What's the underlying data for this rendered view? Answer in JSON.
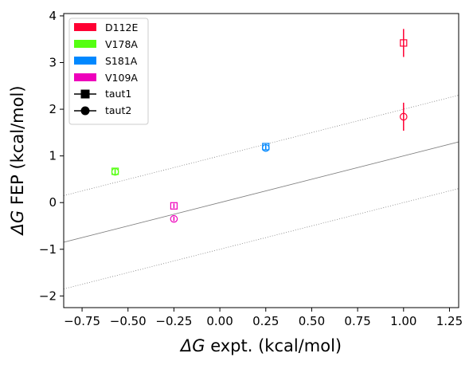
{
  "chart_data": {
    "type": "scatter",
    "xlabel_symbol": "ΔG",
    "xlabel_rest": " expt. (kcal/mol)",
    "ylabel_symbol": "ΔG",
    "ylabel_rest": " FEP (kcal/mol)",
    "xlim": [
      -0.85,
      1.3
    ],
    "ylim": [
      -2.25,
      4.05
    ],
    "xticks": [
      -0.75,
      -0.5,
      -0.25,
      0.0,
      0.25,
      0.5,
      0.75,
      1.0,
      1.25
    ],
    "xtick_labels": [
      "−0.75",
      "−0.50",
      "−0.25",
      "0.00",
      "0.25",
      "0.50",
      "0.75",
      "1.00",
      "1.25"
    ],
    "yticks": [
      -2,
      -1,
      0,
      1,
      2,
      3,
      4
    ],
    "ytick_labels": [
      "−2",
      "−1",
      "0",
      "1",
      "2",
      "3",
      "4"
    ],
    "grid": false,
    "legend_position": "top-left",
    "reference_lines": [
      {
        "offset": 0,
        "style": "solid",
        "color": "#808080"
      },
      {
        "offset": 1,
        "style": "dotted",
        "color": "#808080"
      },
      {
        "offset": -1,
        "style": "dotted",
        "color": "#808080"
      }
    ],
    "series": [
      {
        "name": "D112E",
        "color": "#ff0033",
        "points": [
          {
            "marker": "square",
            "x": 1.0,
            "y": 3.42,
            "yerr": 0.3
          },
          {
            "marker": "circle",
            "x": 1.0,
            "y": 1.84,
            "yerr": 0.3
          }
        ]
      },
      {
        "name": "V178A",
        "color": "#55ff11",
        "points": [
          {
            "marker": "square",
            "x": -0.57,
            "y": 0.67,
            "yerr": 0.05
          },
          {
            "marker": "circle",
            "x": -0.57,
            "y": 0.66,
            "yerr": 0.05
          }
        ]
      },
      {
        "name": "S181A",
        "color": "#0088ff",
        "points": [
          {
            "marker": "square",
            "x": 0.25,
            "y": 1.2,
            "yerr": 0.05
          },
          {
            "marker": "circle",
            "x": 0.25,
            "y": 1.17,
            "yerr": 0.05
          }
        ]
      },
      {
        "name": "V109A",
        "color": "#ee00bb",
        "points": [
          {
            "marker": "square",
            "x": -0.25,
            "y": -0.07,
            "yerr": 0.05
          },
          {
            "marker": "circle",
            "x": -0.25,
            "y": -0.35,
            "yerr": 0.05
          }
        ]
      }
    ],
    "marker_legend": [
      {
        "name": "taut1",
        "marker": "square"
      },
      {
        "name": "taut2",
        "marker": "circle"
      }
    ]
  }
}
